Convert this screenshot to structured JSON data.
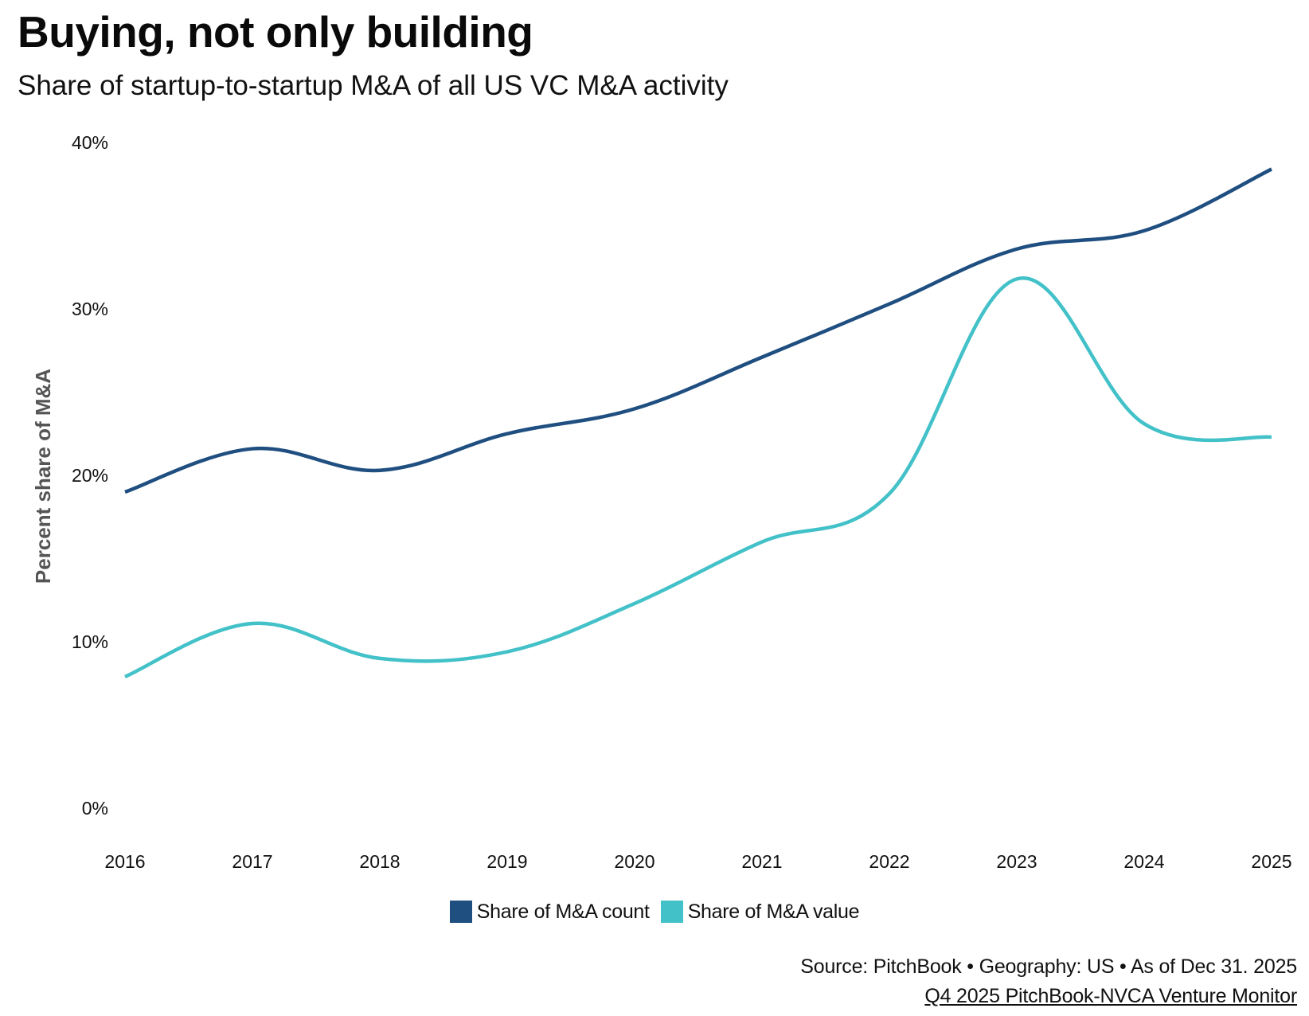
{
  "header": {
    "title": "Buying, not only building",
    "subtitle": "Share of startup-to-startup M&A of all US VC M&A activity"
  },
  "colors": {
    "count": "#1F4E80",
    "value": "#43C1C8"
  },
  "chart_data": {
    "type": "line",
    "title": "Buying, not only building",
    "subtitle": "Share of startup-to-startup M&A of all US VC M&A activity",
    "xlabel": "",
    "ylabel": "Percent share of M&A",
    "x": [
      "2016",
      "2017",
      "2018",
      "2019",
      "2020",
      "2021",
      "2022",
      "2023",
      "2024",
      "2025"
    ],
    "ylim": [
      0,
      40
    ],
    "yticks": [
      0,
      10,
      20,
      30,
      40
    ],
    "ytick_labels": [
      "0%",
      "10%",
      "20%",
      "30%",
      "40%"
    ],
    "grid": false,
    "smooth": true,
    "legend_position": "bottom-center",
    "series": [
      {
        "name": "Share of M&A count",
        "color": "#1F4E80",
        "values": [
          19.0,
          21.6,
          20.3,
          22.5,
          24.0,
          27.1,
          30.3,
          33.6,
          34.7,
          38.4
        ]
      },
      {
        "name": "Share of M&A value",
        "color": "#43C1C8",
        "values": [
          7.9,
          11.1,
          9.0,
          9.4,
          12.3,
          16.0,
          18.9,
          31.8,
          23.1,
          22.3
        ]
      }
    ]
  },
  "legend": {
    "items": [
      {
        "label": "Share of M&A count",
        "color": "#1F4E80"
      },
      {
        "label": "Share of M&A value",
        "color": "#43C1C8"
      }
    ]
  },
  "footer": {
    "source": "Source: PitchBook • Geography: US • As of Dec 31. 2025",
    "report": "Q4 2025 PitchBook-NVCA Venture Monitor"
  }
}
